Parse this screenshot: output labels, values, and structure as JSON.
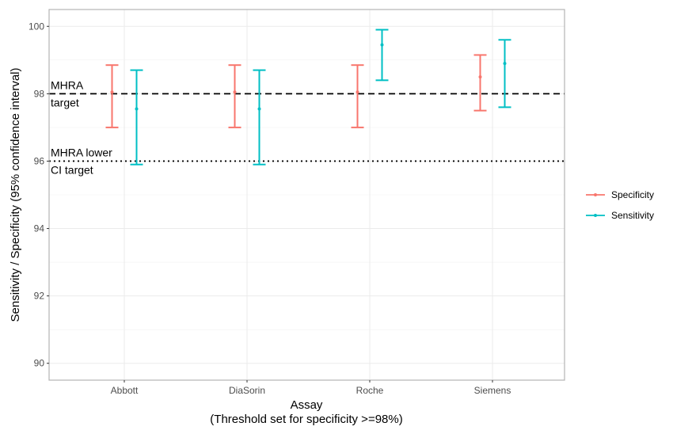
{
  "chart_data": {
    "type": "errorbar",
    "xlabel": "Assay",
    "xlabel_sub": "(Threshold set for specificity >=98%)",
    "ylabel": "Sensitivity / Specificity (95% confidence interval)",
    "ylim": [
      89.5,
      100.5
    ],
    "yticks": [
      90,
      92,
      94,
      96,
      98,
      100
    ],
    "categories": [
      "Abbott",
      "DiaSorin",
      "Roche",
      "Siemens"
    ],
    "grid": true,
    "legend_position": "right",
    "series": [
      {
        "name": "Specificity",
        "color": "#F8766D",
        "points": [
          {
            "category": "Abbott",
            "value": 98.05,
            "lower": 97.0,
            "upper": 98.85
          },
          {
            "category": "DiaSorin",
            "value": 98.05,
            "lower": 97.0,
            "upper": 98.85
          },
          {
            "category": "Roche",
            "value": 98.05,
            "lower": 97.0,
            "upper": 98.85
          },
          {
            "category": "Siemens",
            "value": 98.5,
            "lower": 97.5,
            "upper": 99.15
          }
        ]
      },
      {
        "name": "Sensitivity",
        "color": "#00BFC4",
        "points": [
          {
            "category": "Abbott",
            "value": 97.55,
            "lower": 95.9,
            "upper": 98.7
          },
          {
            "category": "DiaSorin",
            "value": 97.55,
            "lower": 95.9,
            "upper": 98.7
          },
          {
            "category": "Roche",
            "value": 99.45,
            "lower": 98.4,
            "upper": 99.9
          },
          {
            "category": "Siemens",
            "value": 98.9,
            "lower": 97.6,
            "upper": 99.6
          }
        ]
      }
    ],
    "reference_lines": [
      {
        "value": 98,
        "style": "dashed",
        "label_line1": "MHRA",
        "label_line2": "target"
      },
      {
        "value": 96,
        "style": "dotted",
        "label_line1": "MHRA lower",
        "label_line2": "CI target"
      }
    ]
  }
}
